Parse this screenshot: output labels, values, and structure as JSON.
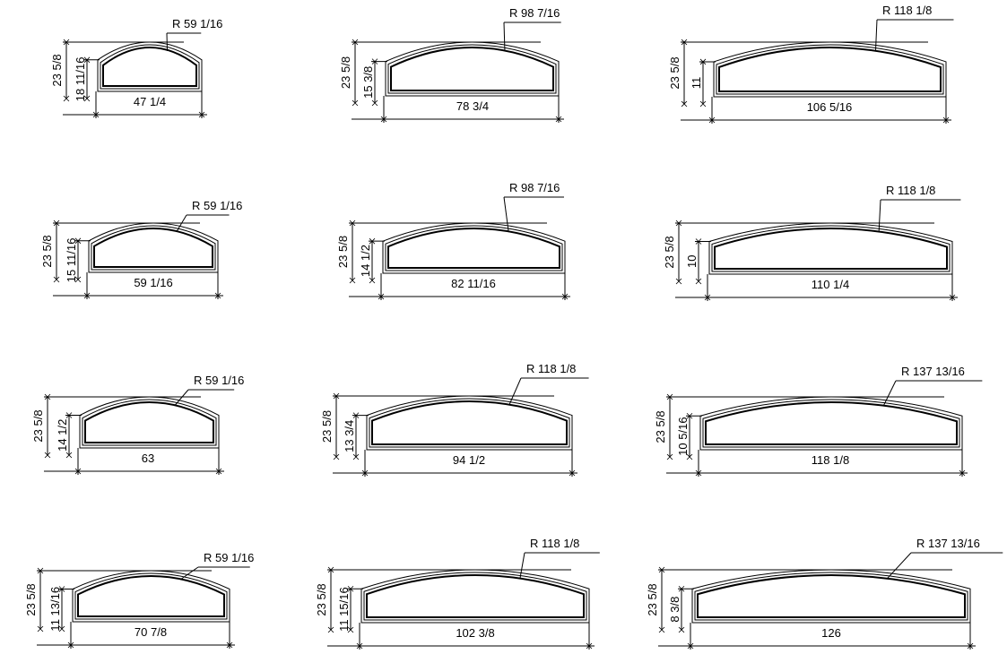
{
  "drawings": [
    {
      "radius_label": "R 59 1/16",
      "width_label": "47 1/4",
      "height_label": "18 11/16",
      "total_height_label": "23 5/8"
    },
    {
      "radius_label": "R 98 7/16",
      "width_label": "78 3/4",
      "height_label": "15 3/8",
      "total_height_label": "23 5/8"
    },
    {
      "radius_label": "R 118 1/8",
      "width_label": "106 5/16",
      "height_label": "11",
      "total_height_label": "23 5/8"
    },
    {
      "radius_label": "R 59 1/16",
      "width_label": "59 1/16",
      "height_label": "15 11/16",
      "total_height_label": "23 5/8"
    },
    {
      "radius_label": "R 98 7/16",
      "width_label": "82 11/16",
      "height_label": "14 1/2",
      "total_height_label": "23 5/8"
    },
    {
      "radius_label": "R 118 1/8",
      "width_label": "110 1/4",
      "height_label": "10",
      "total_height_label": "23 5/8"
    },
    {
      "radius_label": "R 59 1/16",
      "width_label": "63",
      "height_label": "14 1/2",
      "total_height_label": "23 5/8"
    },
    {
      "radius_label": "R 118 1/8",
      "width_label": "94 1/2",
      "height_label": "13 3/4",
      "total_height_label": "23 5/8"
    },
    {
      "radius_label": "R 137 13/16",
      "width_label": "118 1/8",
      "height_label": "10 5/16",
      "total_height_label": "23 5/8"
    },
    {
      "radius_label": "R 59 1/16",
      "width_label": "70 7/8",
      "height_label": "11 13/16",
      "total_height_label": "23 5/8"
    },
    {
      "radius_label": "R 118 1/8",
      "width_label": "102 3/8",
      "height_label": "11 15/16",
      "total_height_label": "23 5/8"
    },
    {
      "radius_label": "R 137 13/16",
      "width_label": "126",
      "height_label": "8 3/8",
      "total_height_label": "23 5/8"
    }
  ]
}
